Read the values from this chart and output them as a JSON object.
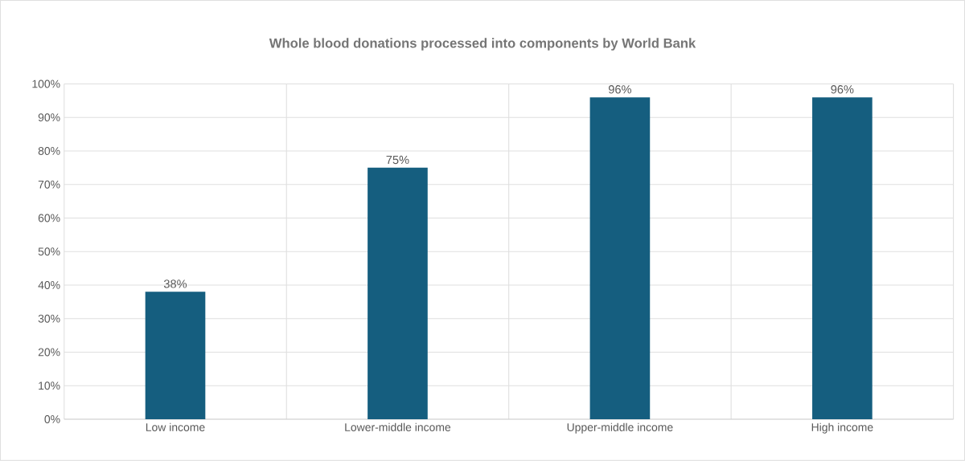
{
  "chart_data": {
    "type": "bar",
    "title": "Whole blood donations processed into components by World Bank",
    "categories": [
      "Low income",
      "Lower-middle income",
      "Upper-middle income",
      "High income"
    ],
    "values": [
      38,
      75,
      96,
      96
    ],
    "color": "#155e7f",
    "value_labels": [
      "38%",
      "75%",
      "96%",
      "96%"
    ],
    "ylim": [
      0,
      100
    ],
    "yticks": [
      {
        "value": 0,
        "label": "0%"
      },
      {
        "value": 10,
        "label": "10%"
      },
      {
        "value": 20,
        "label": "20%"
      },
      {
        "value": 30,
        "label": "30%"
      },
      {
        "value": 40,
        "label": "40%"
      },
      {
        "value": 50,
        "label": "50%"
      },
      {
        "value": 60,
        "label": "60%"
      },
      {
        "value": 70,
        "label": "70%"
      },
      {
        "value": 80,
        "label": "80%"
      },
      {
        "value": 90,
        "label": "90%"
      },
      {
        "value": 100,
        "label": "100%"
      }
    ],
    "grid": true
  }
}
